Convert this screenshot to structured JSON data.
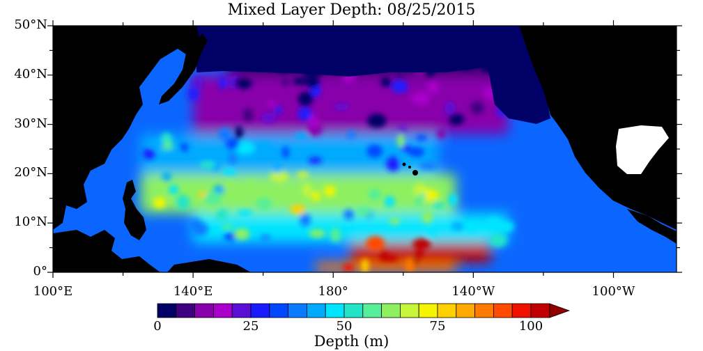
{
  "title": "Mixed Layer Depth: 08/25/2015",
  "y_axis": {
    "labels": [
      "50°N",
      "40°N",
      "30°N",
      "20°N",
      "10°N",
      "0°"
    ]
  },
  "x_axis": {
    "labels": [
      "100°E",
      "140°E",
      "180°",
      "140°W",
      "100°W"
    ]
  },
  "colorbar": {
    "title": "Depth (m)",
    "tick_labels": [
      "0",
      "25",
      "50",
      "75",
      "100"
    ],
    "colors": [
      "#000066",
      "#3f0080",
      "#8800aa",
      "#aa00cc",
      "#5b0ed6",
      "#1a1aff",
      "#0047ff",
      "#0a7aff",
      "#00aaff",
      "#00e5ff",
      "#22e5c8",
      "#55ee99",
      "#8ef060",
      "#c7f53a",
      "#f5f500",
      "#ffd000",
      "#ffaa00",
      "#ff7a00",
      "#ff4a00",
      "#ee1100",
      "#c00000",
      "#900000"
    ]
  },
  "map_colors": {
    "land": "#000000",
    "no_data": "#ffffff",
    "ocean_shallow": "#000066"
  },
  "chart_data": {
    "type": "heatmap",
    "title": "Mixed Layer Depth: 08/25/2015",
    "variable": "Depth (m)",
    "value_range": [
      0,
      100
    ],
    "lon_range": [
      100,
      278
    ],
    "lat_range": [
      0,
      50
    ],
    "regions": [
      {
        "lat": [
          2,
          6
        ],
        "lon": [
          185,
          225
        ],
        "depth": 95
      },
      {
        "lat": [
          0,
          2
        ],
        "lon": [
          175,
          215
        ],
        "depth": 80
      },
      {
        "lat": [
          6,
          12
        ],
        "lon": [
          140,
          230
        ],
        "depth": 45
      },
      {
        "lat": [
          12,
          20
        ],
        "lon": [
          125,
          215
        ],
        "depth": 55
      },
      {
        "lat": [
          20,
          28
        ],
        "lon": [
          125,
          210
        ],
        "depth": 40
      },
      {
        "lat": [
          28,
          40
        ],
        "lon": [
          140,
          230
        ],
        "depth": 12
      },
      {
        "lat": [
          40,
          50
        ],
        "lon": [
          150,
          235
        ],
        "depth": 2
      }
    ]
  }
}
